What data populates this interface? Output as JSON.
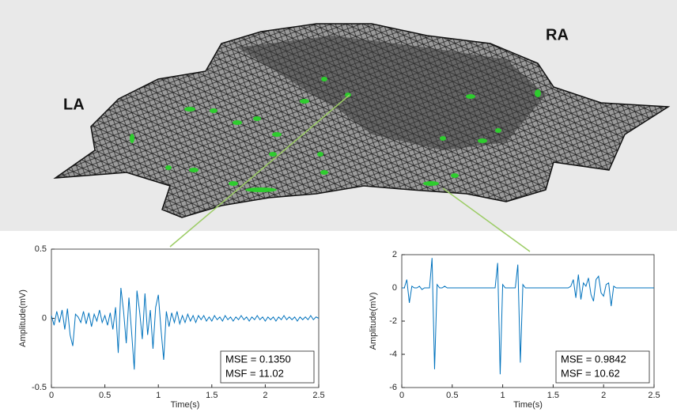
{
  "image": {
    "labels": [
      "LA",
      "RA"
    ]
  },
  "chart_data": [
    {
      "type": "line",
      "xlabel": "Time(s)",
      "ylabel": "Amplitude(mV)",
      "xlim": [
        0,
        2.5
      ],
      "ylim": [
        -0.5,
        0.5
      ],
      "xticks": [
        0,
        0.5,
        1,
        1.5,
        2,
        2.5
      ],
      "yticks": [
        -0.5,
        0,
        0.5
      ],
      "annotations": [
        "MSE = 0.1350",
        "MSF = 11.02"
      ],
      "series": [
        {
          "color": "#0072bd",
          "x": [
            0,
            0.025,
            0.05,
            0.075,
            0.1,
            0.125,
            0.15,
            0.175,
            0.2,
            0.225,
            0.25,
            0.275,
            0.3,
            0.325,
            0.35,
            0.375,
            0.4,
            0.425,
            0.45,
            0.475,
            0.5,
            0.525,
            0.55,
            0.575,
            0.6,
            0.625,
            0.65,
            0.675,
            0.7,
            0.725,
            0.75,
            0.775,
            0.8,
            0.825,
            0.85,
            0.875,
            0.9,
            0.925,
            0.95,
            0.975,
            1,
            1.025,
            1.05,
            1.075,
            1.1,
            1.125,
            1.15,
            1.175,
            1.2,
            1.225,
            1.25,
            1.275,
            1.3,
            1.325,
            1.35,
            1.375,
            1.4,
            1.425,
            1.45,
            1.475,
            1.5,
            1.525,
            1.55,
            1.575,
            1.6,
            1.625,
            1.65,
            1.675,
            1.7,
            1.725,
            1.75,
            1.775,
            1.8,
            1.825,
            1.85,
            1.875,
            1.9,
            1.925,
            1.95,
            1.975,
            2,
            2.025,
            2.05,
            2.075,
            2.1,
            2.125,
            2.15,
            2.175,
            2.2,
            2.225,
            2.25,
            2.275,
            2.3,
            2.325,
            2.35,
            2.375,
            2.4,
            2.425,
            2.45,
            2.475,
            2.5
          ],
          "values": [
            0.02,
            -0.05,
            0.05,
            -0.03,
            0.06,
            -0.08,
            0.07,
            -0.12,
            -0.2,
            0.03,
            0.01,
            -0.03,
            0.05,
            -0.04,
            0.04,
            -0.06,
            0.03,
            -0.02,
            0.06,
            -0.03,
            0.02,
            -0.05,
            0.04,
            -0.08,
            0.08,
            -0.25,
            0.22,
            0.05,
            -0.18,
            0.15,
            -0.1,
            -0.37,
            0.2,
            0.05,
            -0.15,
            0.18,
            -0.12,
            0.06,
            -0.22,
            0.08,
            0.17,
            -0.08,
            -0.3,
            0.05,
            -0.06,
            0.04,
            -0.03,
            0.05,
            -0.04,
            0.02,
            -0.03,
            0.03,
            -0.02,
            0.02,
            -0.03,
            0.02,
            -0.01,
            0.02,
            -0.02,
            0.01,
            -0.02,
            0.02,
            -0.01,
            0.01,
            -0.02,
            0.02,
            -0.01,
            0.01,
            -0.02,
            0.01,
            -0.01,
            0.02,
            -0.01,
            0.01,
            -0.02,
            0.01,
            -0.01,
            0.02,
            -0.01,
            0.01,
            -0.02,
            0.01,
            -0.01,
            0.01,
            -0.02,
            0.01,
            -0.01,
            0.02,
            -0.01,
            0.01,
            -0.01,
            0.01,
            -0.02,
            0.01,
            -0.01,
            0.01,
            -0.01,
            0.02,
            -0.01,
            0.01,
            0
          ]
        }
      ]
    },
    {
      "type": "line",
      "xlabel": "Time(s)",
      "ylabel": "Amplitude(mV)",
      "xlim": [
        0,
        2.5
      ],
      "ylim": [
        -6,
        2
      ],
      "xticks": [
        0,
        0.5,
        1,
        1.5,
        2,
        2.5
      ],
      "yticks": [
        -6,
        -4,
        -2,
        0,
        2
      ],
      "annotations": [
        "MSE = 0.9842",
        "MSF = 10.62"
      ],
      "series": [
        {
          "color": "#0072bd",
          "x": [
            0,
            0.025,
            0.05,
            0.075,
            0.1,
            0.125,
            0.15,
            0.175,
            0.2,
            0.225,
            0.25,
            0.275,
            0.3,
            0.325,
            0.35,
            0.375,
            0.4,
            0.425,
            0.45,
            0.475,
            0.5,
            0.525,
            0.55,
            0.575,
            0.6,
            0.625,
            0.65,
            0.675,
            0.7,
            0.725,
            0.75,
            0.775,
            0.8,
            0.825,
            0.85,
            0.875,
            0.9,
            0.925,
            0.95,
            0.975,
            1,
            1.025,
            1.05,
            1.075,
            1.1,
            1.125,
            1.15,
            1.175,
            1.2,
            1.225,
            1.25,
            1.275,
            1.3,
            1.325,
            1.35,
            1.375,
            1.4,
            1.425,
            1.45,
            1.475,
            1.5,
            1.525,
            1.55,
            1.575,
            1.6,
            1.625,
            1.65,
            1.675,
            1.7,
            1.725,
            1.75,
            1.775,
            1.8,
            1.825,
            1.85,
            1.875,
            1.9,
            1.925,
            1.95,
            1.975,
            2,
            2.025,
            2.05,
            2.075,
            2.1,
            2.125,
            2.15,
            2.175,
            2.2,
            2.225,
            2.25,
            2.275,
            2.3,
            2.325,
            2.35,
            2.375,
            2.4,
            2.425,
            2.45,
            2.475,
            2.5
          ],
          "values": [
            0,
            0,
            0.5,
            -0.9,
            0.1,
            0,
            0,
            0.1,
            -0.1,
            0,
            0,
            0,
            1.8,
            -4.9,
            0.2,
            0,
            0,
            0.1,
            0,
            0,
            0,
            0,
            0,
            0,
            0,
            0,
            0,
            0,
            0,
            0,
            0,
            0,
            0,
            0,
            0,
            0,
            0,
            0,
            1.5,
            -5.2,
            0.2,
            0,
            0,
            0,
            0,
            0,
            1.4,
            -4.5,
            0.2,
            0,
            0,
            0,
            0,
            0,
            0,
            0,
            0,
            0,
            0,
            0,
            0,
            0,
            0,
            0,
            0,
            0,
            0,
            0.1,
            0.5,
            -0.6,
            0.8,
            -0.7,
            0.3,
            0.1,
            0.6,
            -0.4,
            -0.8,
            0.5,
            0.7,
            -0.3,
            -0.5,
            0.2,
            0.3,
            -1.1,
            0.1,
            0,
            0,
            0,
            0,
            0,
            0,
            0,
            0,
            0,
            0,
            0,
            0,
            0,
            0,
            0,
            0
          ]
        }
      ]
    }
  ]
}
